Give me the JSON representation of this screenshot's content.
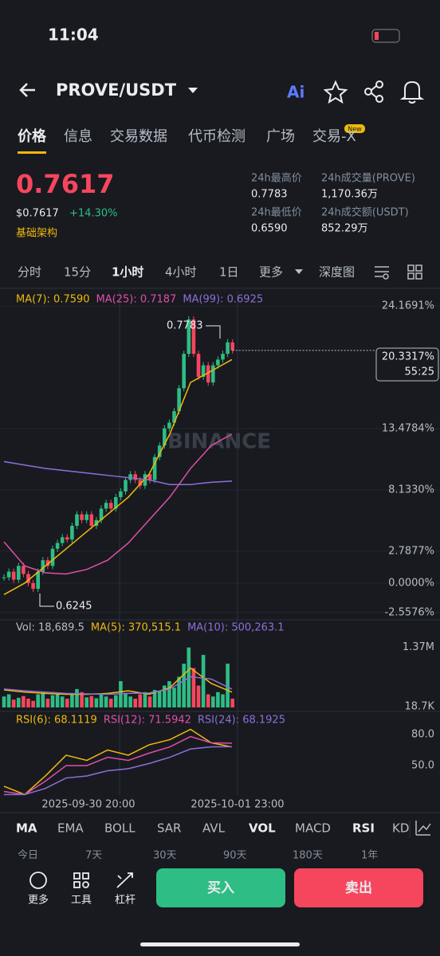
{
  "status": {
    "time": "11:04"
  },
  "header": {
    "pair": "PROVE/USDT",
    "ai": "Ai"
  },
  "tabs": {
    "items": [
      "价格",
      "信息",
      "交易数据",
      "代币检测",
      "广场",
      "交易-X"
    ],
    "badge": "New"
  },
  "price": {
    "last": "0.7617",
    "usd": "$0.7617",
    "change": "+14.30%",
    "tag": "基础架构"
  },
  "stats": [
    {
      "label": "24h最高价",
      "value": "0.7783"
    },
    {
      "label": "24h成交量(PROVE)",
      "value": "1,170.36万"
    },
    {
      "label": "24h最低价",
      "value": "0.6590"
    },
    {
      "label": "24h成交额(USDT)",
      "value": "852.29万"
    }
  ],
  "intervals": [
    "分时",
    "15分",
    "1小时",
    "4小时",
    "1日",
    "更多",
    "深度图"
  ],
  "chart": {
    "type": "candlestick",
    "legend": [
      "MA(7): 0.7590",
      "MA(25): 0.7187",
      "MA(99): 0.6925"
    ],
    "ylim": [
      -3.2,
      25.5
    ],
    "yticks": [
      {
        "value": 24.1691,
        "label": "24.1691%"
      },
      {
        "value": 13.4784,
        "label": "13.4784%"
      },
      {
        "value": 8.133,
        "label": "8.1330%"
      },
      {
        "value": 2.7877,
        "label": "2.7877%"
      },
      {
        "value": 0,
        "label": "0.0000%"
      },
      {
        "value": -2.5576,
        "label": "-2.5576%"
      }
    ],
    "close": [
      0.5,
      1,
      0.3,
      1.5,
      0.8,
      0,
      -0.5,
      1,
      2,
      1.5,
      3,
      3.5,
      4,
      3.8,
      5,
      6,
      5.5,
      6,
      5,
      5.5,
      6.5,
      7,
      6.5,
      7.5,
      8,
      9,
      9.5,
      9,
      8.5,
      9.5,
      9,
      11,
      12,
      13.5,
      14,
      15,
      17,
      20,
      23,
      20,
      18,
      19,
      17.5,
      19,
      19.5,
      20,
      21,
      20.3
    ],
    "ma": [
      {
        "color": "#f0b90b",
        "values": [
          -1,
          0,
          1.5,
          3,
          4.5,
          6,
          7.5,
          9.5,
          13,
          17.5,
          18.5,
          19.5
        ]
      },
      {
        "color": "#e04fa8",
        "values": [
          3.6,
          1.5,
          0.9,
          0.8,
          1.2,
          2,
          3.5,
          5.5,
          7.5,
          10,
          12,
          13
        ]
      },
      {
        "color": "#8e6fd8",
        "values": [
          10.6,
          10.3,
          10,
          9.8,
          9.6,
          9.4,
          9.2,
          9,
          8.6,
          8.6,
          8.8,
          8.9
        ]
      }
    ],
    "high_label": "0.7783",
    "low_label": "0.6245",
    "current": "20.3317%",
    "countdown": "55:25",
    "watermark": "BINANCE"
  },
  "volume": {
    "legend": [
      "Vol: 18,689.5",
      "MA(5): 370,515.1",
      "MA(10): 500,263.1"
    ],
    "ylim": [
      0,
      1420000
    ],
    "yticks": [
      {
        "value": 1370000,
        "label": "1.37M"
      },
      {
        "value": 18700,
        "label": "18.7K"
      }
    ],
    "values": [
      250000,
      300000,
      180000,
      220000,
      260000,
      200000,
      150000,
      300000,
      350000,
      200000,
      280000,
      320000,
      250000,
      200000,
      300000,
      420000,
      350000,
      230000,
      260000,
      210000,
      300000,
      250000,
      200000,
      280000,
      600000,
      320000,
      250000,
      200000,
      300000,
      350000,
      250000,
      400000,
      380000,
      500000,
      600000,
      450000,
      700000,
      1000000,
      1370000,
      900000,
      500000,
      1200000,
      300000,
      250000,
      350000,
      300000,
      1000000,
      200000
    ],
    "ma": [
      {
        "color": "#f0b90b",
        "values": [
          400000,
          350000,
          320000,
          300000,
          300000,
          320000,
          380000,
          300000,
          450000,
          900000,
          550000,
          350000
        ]
      },
      {
        "color": "#8e6fd8",
        "values": [
          420000,
          380000,
          350000,
          320000,
          310000,
          300000,
          320000,
          330000,
          420000,
          700000,
          650000,
          420000
        ]
      }
    ]
  },
  "rsi": {
    "legend": [
      "RSI(6): 68.1119",
      "RSI(12): 71.5942",
      "RSI(24): 68.1925"
    ],
    "ylim": [
      21.5,
      99.2
    ],
    "yticks": [
      {
        "value": 80,
        "label": "80.0"
      },
      {
        "value": 50,
        "label": "50.0"
      }
    ],
    "lines": [
      {
        "color": "#f0b90b",
        "values": [
          30,
          22,
          40,
          60,
          55,
          65,
          60,
          70,
          75,
          85,
          72,
          68
        ]
      },
      {
        "color": "#e04fa8",
        "values": [
          25,
          22,
          35,
          50,
          50,
          58,
          55,
          62,
          68,
          78,
          72,
          71.6
        ]
      },
      {
        "color": "#8e6fd8",
        "values": [
          22,
          22,
          28,
          38,
          40,
          45,
          47,
          52,
          58,
          66,
          68,
          68.2
        ]
      }
    ]
  },
  "time_labels": [
    "2025-09-30 20:00",
    "2025-10-01 23:00"
  ],
  "indicators": [
    "MA",
    "EMA",
    "BOLL",
    "SAR",
    "AVL",
    "VOL",
    "MACD",
    "RSI",
    "KD"
  ],
  "ranges": [
    "今日",
    "7天",
    "30天",
    "90天",
    "180天",
    "1年"
  ],
  "bottom": {
    "tools": [
      "更多",
      "工具",
      "杠杆"
    ],
    "buy": "买入",
    "sell": "卖出"
  }
}
